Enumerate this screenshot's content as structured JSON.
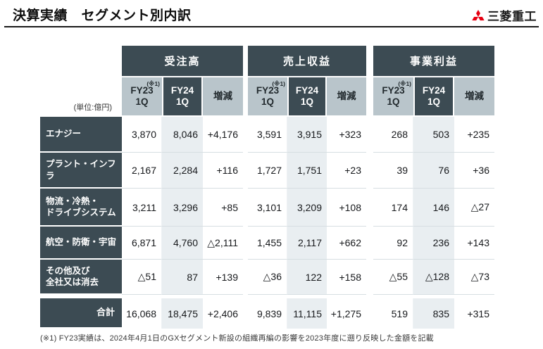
{
  "header": {
    "title": "決算実績　セグメント別内訳",
    "logo_text": "三菱重工"
  },
  "unit_label": "(単位:億円)",
  "table": {
    "groups": [
      {
        "label": "受注高"
      },
      {
        "label": "売上収益"
      },
      {
        "label": "事業利益"
      }
    ],
    "columns": {
      "footnote_ref": "(※1)",
      "fy23": "FY23\n1Q",
      "fy24": "FY24\n1Q",
      "change": "増減"
    },
    "rows": [
      {
        "label": "エナジー",
        "order": [
          "3,870",
          "8,046",
          "+4,176"
        ],
        "revenue": [
          "3,591",
          "3,915",
          "+323"
        ],
        "profit": [
          "268",
          "503",
          "+235"
        ]
      },
      {
        "label": "プラント・インフラ",
        "order": [
          "2,167",
          "2,284",
          "+116"
        ],
        "revenue": [
          "1,727",
          "1,751",
          "+23"
        ],
        "profit": [
          "39",
          "76",
          "+36"
        ]
      },
      {
        "label": "物流・冷熱・\nドライブシステム",
        "order": [
          "3,211",
          "3,296",
          "+85"
        ],
        "revenue": [
          "3,101",
          "3,209",
          "+108"
        ],
        "profit": [
          "174",
          "146",
          "△27"
        ]
      },
      {
        "label": "航空・防衛・宇宙",
        "order": [
          "6,871",
          "4,760",
          "△2,111"
        ],
        "revenue": [
          "1,455",
          "2,117",
          "+662"
        ],
        "profit": [
          "92",
          "236",
          "+143"
        ]
      },
      {
        "label": "その他及び\n全社又は消去",
        "order": [
          "△51",
          "87",
          "+139"
        ],
        "revenue": [
          "△36",
          "122",
          "+158"
        ],
        "profit": [
          "△55",
          "△128",
          "△73"
        ]
      }
    ],
    "total_row": {
      "label": "合計",
      "order": [
        "16,068",
        "18,475",
        "+2,406"
      ],
      "revenue": [
        "9,839",
        "11,115",
        "+1,275"
      ],
      "profit": [
        "519",
        "835",
        "+315"
      ]
    }
  },
  "footnote": "(※1) FY23実績は、2024年4月1日のGXセグメント新設の組織再編の影響を2023年度に遡り反映した金額を記載",
  "colors": {
    "dark_header": "#3c4b53",
    "light_header": "#b9c5cb",
    "fy24_column_bg": "#e9eef1",
    "logo_red": "#e60012"
  }
}
